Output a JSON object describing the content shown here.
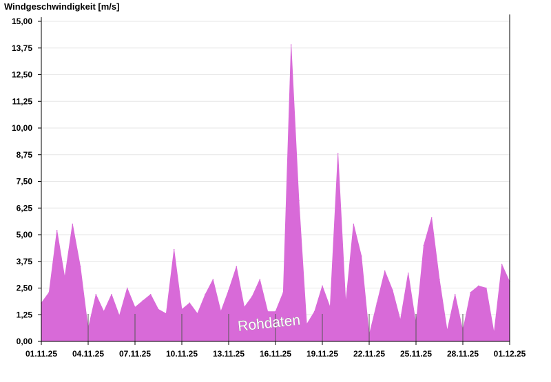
{
  "chart_data": {
    "type": "area",
    "title": "",
    "ylabel": "Windgeschwindigkeit [m/s]",
    "xlabel": "",
    "ylim": [
      0,
      15
    ],
    "yticks": [
      "0,00",
      "1,25",
      "2,50",
      "3,75",
      "5,00",
      "6,25",
      "7,50",
      "8,75",
      "10,00",
      "11,25",
      "12,50",
      "13,75",
      "15,00"
    ],
    "xticks": [
      "01.11.25",
      "04.11.25",
      "07.11.25",
      "10.11.25",
      "13.11.25",
      "16.11.25",
      "19.11.25",
      "22.11.25",
      "25.11.25",
      "28.11.25",
      "01.12.25"
    ],
    "grid": true,
    "annotation": "Rohdaten",
    "series": [
      {
        "color": "#d86ad8",
        "x": [
          "01.11.25",
          "01.11.25 12:00",
          "02.11.25",
          "02.11.25 12:00",
          "03.11.25",
          "03.11.25 12:00",
          "04.11.25",
          "04.11.25 12:00",
          "05.11.25",
          "05.11.25 12:00",
          "06.11.25",
          "06.11.25 12:00",
          "07.11.25",
          "07.11.25 12:00",
          "08.11.25",
          "08.11.25 12:00",
          "09.11.25",
          "09.11.25 12:00",
          "10.11.25",
          "10.11.25 12:00",
          "11.11.25",
          "11.11.25 12:00",
          "12.11.25",
          "12.11.25 12:00",
          "13.11.25",
          "13.11.25 12:00",
          "14.11.25",
          "14.11.25 12:00",
          "15.11.25",
          "15.11.25 12:00",
          "16.11.25",
          "16.11.25 12:00",
          "17.11.25",
          "17.11.25 12:00",
          "18.11.25",
          "18.11.25 12:00",
          "19.11.25",
          "19.11.25 12:00",
          "20.11.25",
          "20.11.25 12:00",
          "21.11.25",
          "21.11.25 12:00",
          "22.11.25",
          "22.11.25 12:00",
          "23.11.25",
          "23.11.25 12:00",
          "24.11.25",
          "24.11.25 12:00",
          "25.11.25",
          "25.11.25 12:00",
          "26.11.25",
          "26.11.25 12:00",
          "27.11.25",
          "27.11.25 12:00",
          "28.11.25",
          "28.11.25 12:00",
          "29.11.25",
          "29.11.25 12:00",
          "30.11.25",
          "30.11.25 12:00",
          "01.12.25"
        ],
        "values": [
          1.8,
          2.3,
          5.2,
          3.0,
          5.5,
          3.5,
          0.6,
          2.2,
          1.4,
          2.2,
          1.2,
          2.5,
          1.6,
          1.9,
          2.2,
          1.5,
          1.3,
          4.3,
          1.5,
          1.8,
          1.3,
          2.2,
          2.9,
          1.4,
          2.4,
          3.5,
          1.6,
          2.1,
          2.9,
          1.4,
          1.4,
          2.3,
          13.9,
          6.6,
          0.8,
          1.4,
          2.6,
          1.6,
          8.8,
          1.8,
          5.5,
          4.0,
          0.3,
          1.8,
          3.3,
          2.4,
          1.0,
          3.2,
          0.8,
          4.5,
          5.8,
          2.9,
          0.5,
          2.2,
          0.5,
          2.3,
          2.6,
          2.5,
          0.4,
          3.6,
          2.8
        ]
      }
    ]
  }
}
